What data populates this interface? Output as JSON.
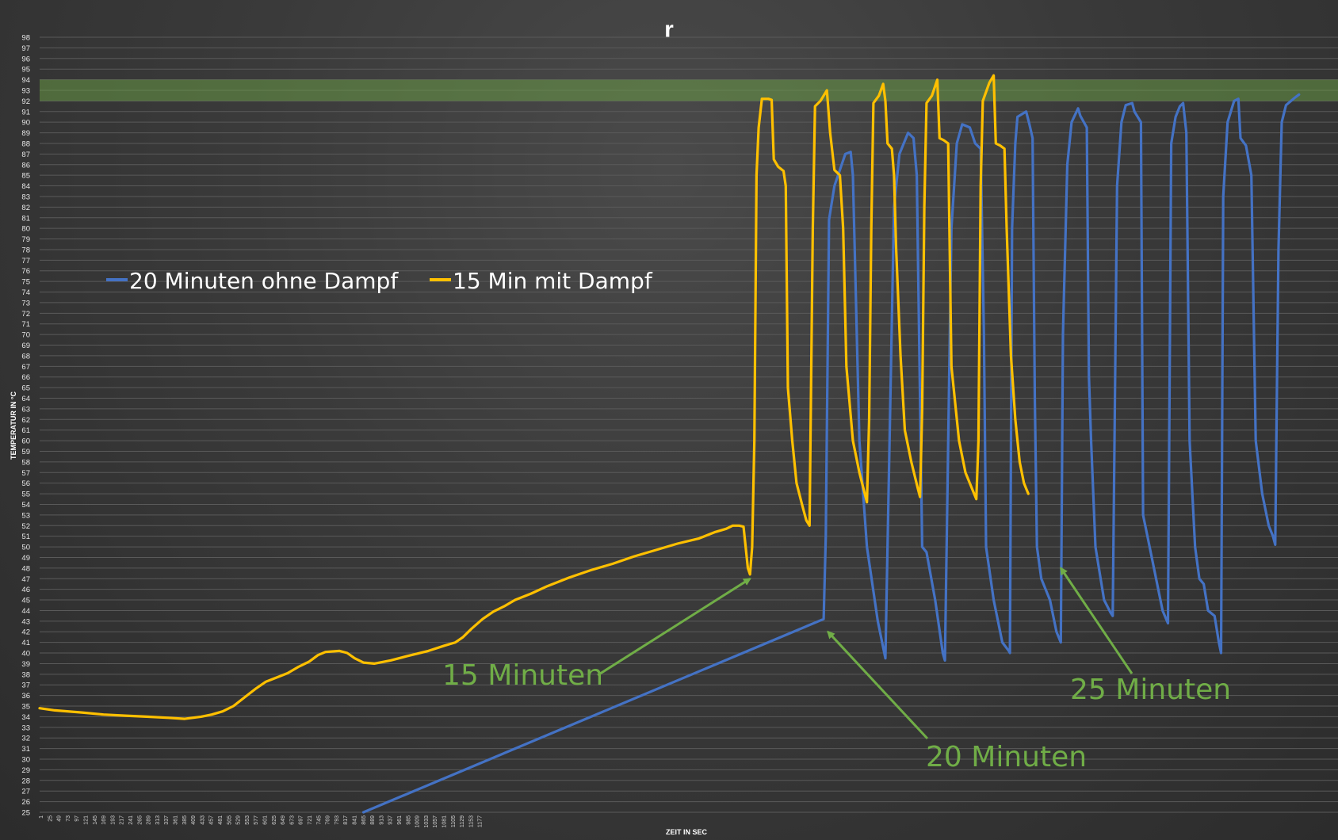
{
  "chart_data": {
    "type": "line",
    "title": "r",
    "xlabel": "ZEIT IN SEC",
    "ylabel": "TEMPERATUR IN °C",
    "ylim": [
      25,
      98
    ],
    "yticks": [
      25,
      26,
      27,
      28,
      29,
      30,
      31,
      32,
      33,
      34,
      35,
      36,
      37,
      38,
      39,
      40,
      41,
      42,
      43,
      44,
      45,
      46,
      47,
      48,
      49,
      50,
      51,
      52,
      53,
      54,
      55,
      56,
      57,
      58,
      59,
      60,
      61,
      62,
      63,
      64,
      65,
      66,
      67,
      68,
      69,
      70,
      71,
      72,
      73,
      74,
      75,
      76,
      77,
      78,
      79,
      80,
      81,
      82,
      83,
      84,
      85,
      86,
      87,
      88,
      89,
      90,
      91,
      92,
      93,
      94,
      95,
      96,
      97,
      98
    ],
    "xlim": [
      1,
      1200
    ],
    "xticks": [
      "1",
      "25",
      "49",
      "73",
      "97",
      "121",
      "145",
      "169",
      "193",
      "217",
      "241",
      "265",
      "289",
      "313",
      "337",
      "361",
      "385",
      "409",
      "433",
      "457",
      "481",
      "505",
      "529",
      "553",
      "577",
      "601",
      "625",
      "649",
      "673",
      "697",
      "721",
      "745",
      "769",
      "793",
      "817",
      "841",
      "865",
      "889",
      "913",
      "937",
      "961",
      "985",
      "1009",
      "1033",
      "1057",
      "1081",
      "1105",
      "1129",
      "1153",
      "1177"
    ],
    "grid": true,
    "legend_position": "top-left",
    "target_band": {
      "from": 92,
      "to": 94,
      "color": "#70ad47"
    },
    "series": [
      {
        "name": "20 Minuten ohne Dampf",
        "color": "#4472c4",
        "points": [
          [
            300,
            25
          ],
          [
            725,
            43.2
          ],
          [
            727,
            51
          ],
          [
            730,
            80.8
          ],
          [
            735,
            84
          ],
          [
            745,
            87
          ],
          [
            750,
            87.2
          ],
          [
            752,
            85
          ],
          [
            758,
            60
          ],
          [
            765,
            50
          ],
          [
            775,
            43
          ],
          [
            782,
            39.5
          ],
          [
            790,
            82
          ],
          [
            795,
            87
          ],
          [
            803,
            89
          ],
          [
            808,
            88.5
          ],
          [
            811,
            85
          ],
          [
            813,
            71
          ],
          [
            816,
            50
          ],
          [
            820,
            49.5
          ],
          [
            828,
            45
          ],
          [
            835,
            40
          ],
          [
            837,
            39.3
          ],
          [
            843,
            80
          ],
          [
            848,
            88
          ],
          [
            853,
            89.8
          ],
          [
            860,
            89.5
          ],
          [
            865,
            88
          ],
          [
            870,
            87.5
          ],
          [
            873,
            70
          ],
          [
            875,
            50
          ],
          [
            882,
            45
          ],
          [
            890,
            41
          ],
          [
            896,
            40.2
          ],
          [
            897,
            40
          ],
          [
            899,
            80
          ],
          [
            902,
            88
          ],
          [
            904,
            90.5
          ],
          [
            912,
            91
          ],
          [
            915,
            89.8
          ],
          [
            918,
            88.5
          ],
          [
            920,
            64
          ],
          [
            922,
            50
          ],
          [
            926,
            47
          ],
          [
            934,
            45
          ],
          [
            940,
            42
          ],
          [
            944,
            41
          ],
          [
            946,
            70
          ],
          [
            950,
            86
          ],
          [
            954,
            90
          ],
          [
            960,
            91.3
          ],
          [
            962,
            90.6
          ],
          [
            968,
            89.5
          ],
          [
            970,
            66
          ],
          [
            972,
            60
          ],
          [
            976,
            50
          ],
          [
            984,
            45
          ],
          [
            990,
            43.8
          ],
          [
            992,
            43.5
          ],
          [
            996,
            84
          ],
          [
            1000,
            90
          ],
          [
            1004,
            91.6
          ],
          [
            1010,
            91.8
          ],
          [
            1012,
            91
          ],
          [
            1018,
            90
          ],
          [
            1020,
            53
          ],
          [
            1024,
            51
          ],
          [
            1030,
            48
          ],
          [
            1038,
            44
          ],
          [
            1043,
            42.8
          ],
          [
            1046,
            88
          ],
          [
            1050,
            90.5
          ],
          [
            1054,
            91.5
          ],
          [
            1057,
            91.8
          ],
          [
            1060,
            89
          ],
          [
            1063,
            60
          ],
          [
            1068,
            50
          ],
          [
            1072,
            47
          ],
          [
            1076,
            46.5
          ],
          [
            1080,
            44
          ],
          [
            1086,
            43.5
          ],
          [
            1090,
            41
          ],
          [
            1092,
            40
          ],
          [
            1094,
            83
          ],
          [
            1098,
            90
          ],
          [
            1104,
            92
          ],
          [
            1108,
            92.2
          ],
          [
            1110,
            88.5
          ],
          [
            1115,
            87.8
          ],
          [
            1120,
            85
          ],
          [
            1124,
            60
          ],
          [
            1130,
            55
          ],
          [
            1136,
            52
          ],
          [
            1140,
            51
          ],
          [
            1142,
            50.2
          ],
          [
            1145,
            78
          ],
          [
            1148,
            90
          ],
          [
            1152,
            91.6
          ],
          [
            1160,
            92.3
          ],
          [
            1164,
            92.6
          ]
        ]
      },
      {
        "name": "15 Min mit Dampf",
        "color": "#ffc000",
        "points": [
          [
            1,
            34.8
          ],
          [
            15,
            34.6
          ],
          [
            40,
            34.4
          ],
          [
            60,
            34.2
          ],
          [
            80,
            34.1
          ],
          [
            100,
            34
          ],
          [
            120,
            33.9
          ],
          [
            135,
            33.8
          ],
          [
            150,
            34
          ],
          [
            160,
            34.2
          ],
          [
            170,
            34.5
          ],
          [
            180,
            35
          ],
          [
            190,
            35.8
          ],
          [
            200,
            36.6
          ],
          [
            210,
            37.3
          ],
          [
            220,
            37.7
          ],
          [
            230,
            38.1
          ],
          [
            240,
            38.7
          ],
          [
            250,
            39.2
          ],
          [
            258,
            39.8
          ],
          [
            265,
            40.1
          ],
          [
            278,
            40.2
          ],
          [
            285,
            40
          ],
          [
            292,
            39.5
          ],
          [
            300,
            39.1
          ],
          [
            310,
            39
          ],
          [
            325,
            39.3
          ],
          [
            340,
            39.7
          ],
          [
            360,
            40.2
          ],
          [
            375,
            40.7
          ],
          [
            385,
            41
          ],
          [
            392,
            41.5
          ],
          [
            400,
            42.3
          ],
          [
            410,
            43.2
          ],
          [
            420,
            43.9
          ],
          [
            430,
            44.4
          ],
          [
            440,
            45
          ],
          [
            455,
            45.6
          ],
          [
            470,
            46.3
          ],
          [
            490,
            47.1
          ],
          [
            510,
            47.8
          ],
          [
            530,
            48.4
          ],
          [
            550,
            49.1
          ],
          [
            570,
            49.7
          ],
          [
            590,
            50.3
          ],
          [
            610,
            50.8
          ],
          [
            625,
            51.4
          ],
          [
            635,
            51.7
          ],
          [
            641,
            52
          ],
          [
            647,
            52
          ],
          [
            651,
            51.9
          ],
          [
            653,
            50
          ],
          [
            655,
            48
          ],
          [
            657,
            47.4
          ],
          [
            659,
            50
          ],
          [
            661,
            60
          ],
          [
            663,
            85
          ],
          [
            665,
            89.5
          ],
          [
            668,
            92.2
          ],
          [
            674,
            92.2
          ],
          [
            677,
            92.1
          ],
          [
            679,
            86.5
          ],
          [
            683,
            85.8
          ],
          [
            688,
            85.4
          ],
          [
            690,
            84
          ],
          [
            692,
            65
          ],
          [
            696,
            60
          ],
          [
            700,
            56
          ],
          [
            705,
            54
          ],
          [
            709,
            52.5
          ],
          [
            712,
            52
          ],
          [
            715,
            80
          ],
          [
            717,
            91.5
          ],
          [
            722,
            92
          ],
          [
            728,
            93
          ],
          [
            731,
            89
          ],
          [
            735,
            85.5
          ],
          [
            740,
            85
          ],
          [
            743,
            80
          ],
          [
            746,
            67
          ],
          [
            752,
            60
          ],
          [
            758,
            57
          ],
          [
            763,
            55
          ],
          [
            765,
            54.2
          ],
          [
            767,
            62
          ],
          [
            769,
            80
          ],
          [
            771,
            91.8
          ],
          [
            776,
            92.5
          ],
          [
            780,
            93.6
          ],
          [
            782,
            92
          ],
          [
            784,
            88
          ],
          [
            788,
            87.5
          ],
          [
            790,
            85
          ],
          [
            792,
            78
          ],
          [
            796,
            68
          ],
          [
            800,
            61
          ],
          [
            806,
            58
          ],
          [
            812,
            55.5
          ],
          [
            814,
            54.7
          ],
          [
            816,
            63
          ],
          [
            818,
            82
          ],
          [
            820,
            91.8
          ],
          [
            825,
            92.5
          ],
          [
            830,
            94
          ],
          [
            832,
            88.5
          ],
          [
            836,
            88.3
          ],
          [
            840,
            88
          ],
          [
            843,
            67
          ],
          [
            850,
            60
          ],
          [
            856,
            57
          ],
          [
            862,
            55.5
          ],
          [
            866,
            54.5
          ],
          [
            868,
            60
          ],
          [
            870,
            84
          ],
          [
            872,
            92
          ],
          [
            878,
            93.7
          ],
          [
            882,
            94.4
          ],
          [
            884,
            88
          ],
          [
            888,
            87.8
          ],
          [
            892,
            87.5
          ],
          [
            894,
            80
          ],
          [
            898,
            68
          ],
          [
            902,
            62
          ],
          [
            906,
            58
          ],
          [
            910,
            56
          ],
          [
            914,
            55
          ]
        ]
      }
    ],
    "annotations": [
      {
        "text": "15 Minuten",
        "arrow_to": [
          657,
          47
        ]
      },
      {
        "text": "20 Minuten",
        "arrow_to": [
          729,
          42
        ]
      },
      {
        "text": "25 Minuten",
        "arrow_to": [
          944,
          48
        ]
      }
    ]
  }
}
